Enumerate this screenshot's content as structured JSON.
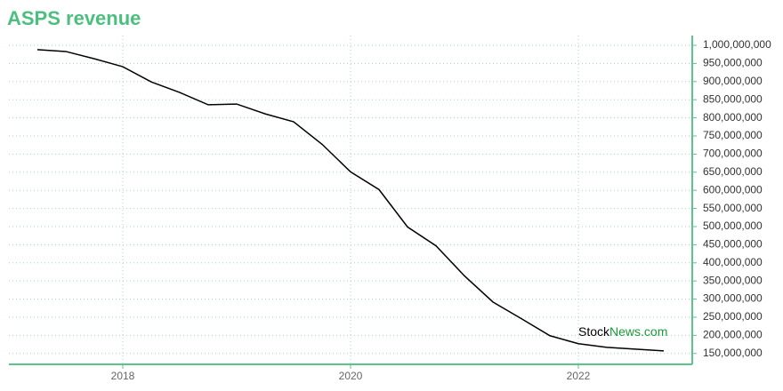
{
  "chart_data": {
    "type": "line",
    "title": "ASPS revenue",
    "x": [
      2017.25,
      2017.5,
      2017.75,
      2018,
      2018.25,
      2018.5,
      2018.75,
      2019,
      2019.25,
      2019.5,
      2019.75,
      2020,
      2020.25,
      2020.5,
      2020.75,
      2021,
      2021.25,
      2021.5,
      2021.75,
      2022,
      2022.25,
      2022.5,
      2022.75
    ],
    "series": [
      {
        "name": "ASPS revenue",
        "color": "#000000",
        "values": [
          988000000,
          983000000,
          963000000,
          941000000,
          899000000,
          870000000,
          836000000,
          838000000,
          811000000,
          789000000,
          727000000,
          651000000,
          602000000,
          499000000,
          447000000,
          364000000,
          292000000,
          246000000,
          199000000,
          177000000,
          167000000,
          162000000,
          157000000
        ]
      }
    ],
    "xlim": [
      2017,
      2023
    ],
    "xticks": [
      2018,
      2020,
      2022
    ],
    "ylim": [
      120000000,
      1027000000
    ],
    "yticks": [
      {
        "value": 150000000,
        "label": "150,000,000"
      },
      {
        "value": 200000000,
        "label": "200,000,000"
      },
      {
        "value": 250000000,
        "label": "250,000,000"
      },
      {
        "value": 300000000,
        "label": "300,000,000"
      },
      {
        "value": 350000000,
        "label": "350,000,000"
      },
      {
        "value": 400000000,
        "label": "400,000,000"
      },
      {
        "value": 450000000,
        "label": "450,000,000"
      },
      {
        "value": 500000000,
        "label": "500,000,000"
      },
      {
        "value": 550000000,
        "label": "550,000,000"
      },
      {
        "value": 600000000,
        "label": "600,000,000"
      },
      {
        "value": 650000000,
        "label": "650,000,000"
      },
      {
        "value": 700000000,
        "label": "700,000,000"
      },
      {
        "value": 750000000,
        "label": "750,000,000"
      },
      {
        "value": 800000000,
        "label": "800,000,000"
      },
      {
        "value": 850000000,
        "label": "850,000,000"
      },
      {
        "value": 900000000,
        "label": "900,000,000"
      },
      {
        "value": 950000000,
        "label": "950,000,000"
      },
      {
        "value": 1000000000,
        "label": "1,000,000,000"
      }
    ],
    "grid": true,
    "axis_color": "#5cc48a",
    "grid_color": "#9fd9d0",
    "watermark": [
      "Stock",
      "News.com"
    ]
  }
}
